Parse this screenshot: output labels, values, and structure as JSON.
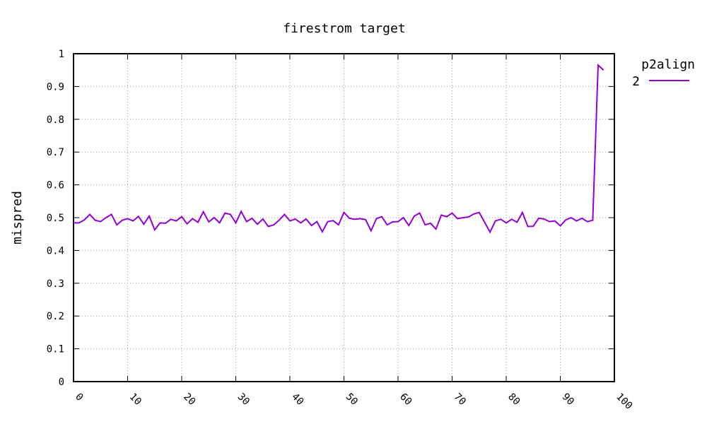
{
  "chart_data": {
    "type": "line",
    "title": "firestrom target",
    "xlabel": "",
    "ylabel": "mispred",
    "xlim": [
      0,
      100
    ],
    "ylim": [
      0,
      1
    ],
    "xticks": [
      "0",
      "10",
      "20",
      "30",
      "40",
      "50",
      "60",
      "70",
      "80",
      "90",
      "100"
    ],
    "yticks": [
      "0",
      "0.1",
      "0.2",
      "0.3",
      "0.4",
      "0.5",
      "0.6",
      "0.7",
      "0.8",
      "0.9",
      "1"
    ],
    "grid": true,
    "legend": {
      "title": "p2align",
      "position": "top-right outside"
    },
    "series": [
      {
        "name": "2",
        "color": "#9400d3",
        "x": [
          0,
          1,
          2,
          3,
          4,
          5,
          6,
          7,
          8,
          9,
          10,
          11,
          12,
          13,
          14,
          15,
          16,
          17,
          18,
          19,
          20,
          21,
          22,
          23,
          24,
          25,
          26,
          27,
          28,
          29,
          30,
          31,
          32,
          33,
          34,
          35,
          36,
          37,
          38,
          39,
          40,
          41,
          42,
          43,
          44,
          45,
          46,
          47,
          48,
          49,
          50,
          51,
          52,
          53,
          54,
          55,
          56,
          57,
          58,
          59,
          60,
          61,
          62,
          63,
          64,
          65,
          66,
          67,
          68,
          69,
          70,
          71,
          72,
          73,
          74,
          75,
          76,
          77,
          78,
          79,
          80,
          81,
          82,
          83,
          84,
          85,
          86,
          87,
          88,
          89,
          90,
          91,
          92,
          93,
          94,
          95,
          96,
          97,
          98
        ],
        "values": [
          0.484,
          0.484,
          0.493,
          0.51,
          0.492,
          0.488,
          0.5,
          0.51,
          0.478,
          0.492,
          0.497,
          0.49,
          0.504,
          0.48,
          0.505,
          0.463,
          0.484,
          0.483,
          0.495,
          0.49,
          0.503,
          0.481,
          0.497,
          0.486,
          0.518,
          0.487,
          0.5,
          0.484,
          0.514,
          0.51,
          0.484,
          0.519,
          0.488,
          0.498,
          0.48,
          0.496,
          0.473,
          0.478,
          0.492,
          0.51,
          0.49,
          0.496,
          0.484,
          0.496,
          0.476,
          0.488,
          0.457,
          0.488,
          0.491,
          0.478,
          0.516,
          0.498,
          0.495,
          0.497,
          0.494,
          0.46,
          0.497,
          0.503,
          0.478,
          0.487,
          0.488,
          0.5,
          0.476,
          0.505,
          0.514,
          0.478,
          0.483,
          0.465,
          0.508,
          0.503,
          0.514,
          0.497,
          0.5,
          0.502,
          0.511,
          0.516,
          0.486,
          0.456,
          0.49,
          0.495,
          0.484,
          0.495,
          0.486,
          0.516,
          0.473,
          0.474,
          0.498,
          0.496,
          0.488,
          0.49,
          0.475,
          0.493,
          0.5,
          0.49,
          0.498,
          0.488,
          0.492,
          0.965,
          0.95
        ]
      }
    ]
  }
}
